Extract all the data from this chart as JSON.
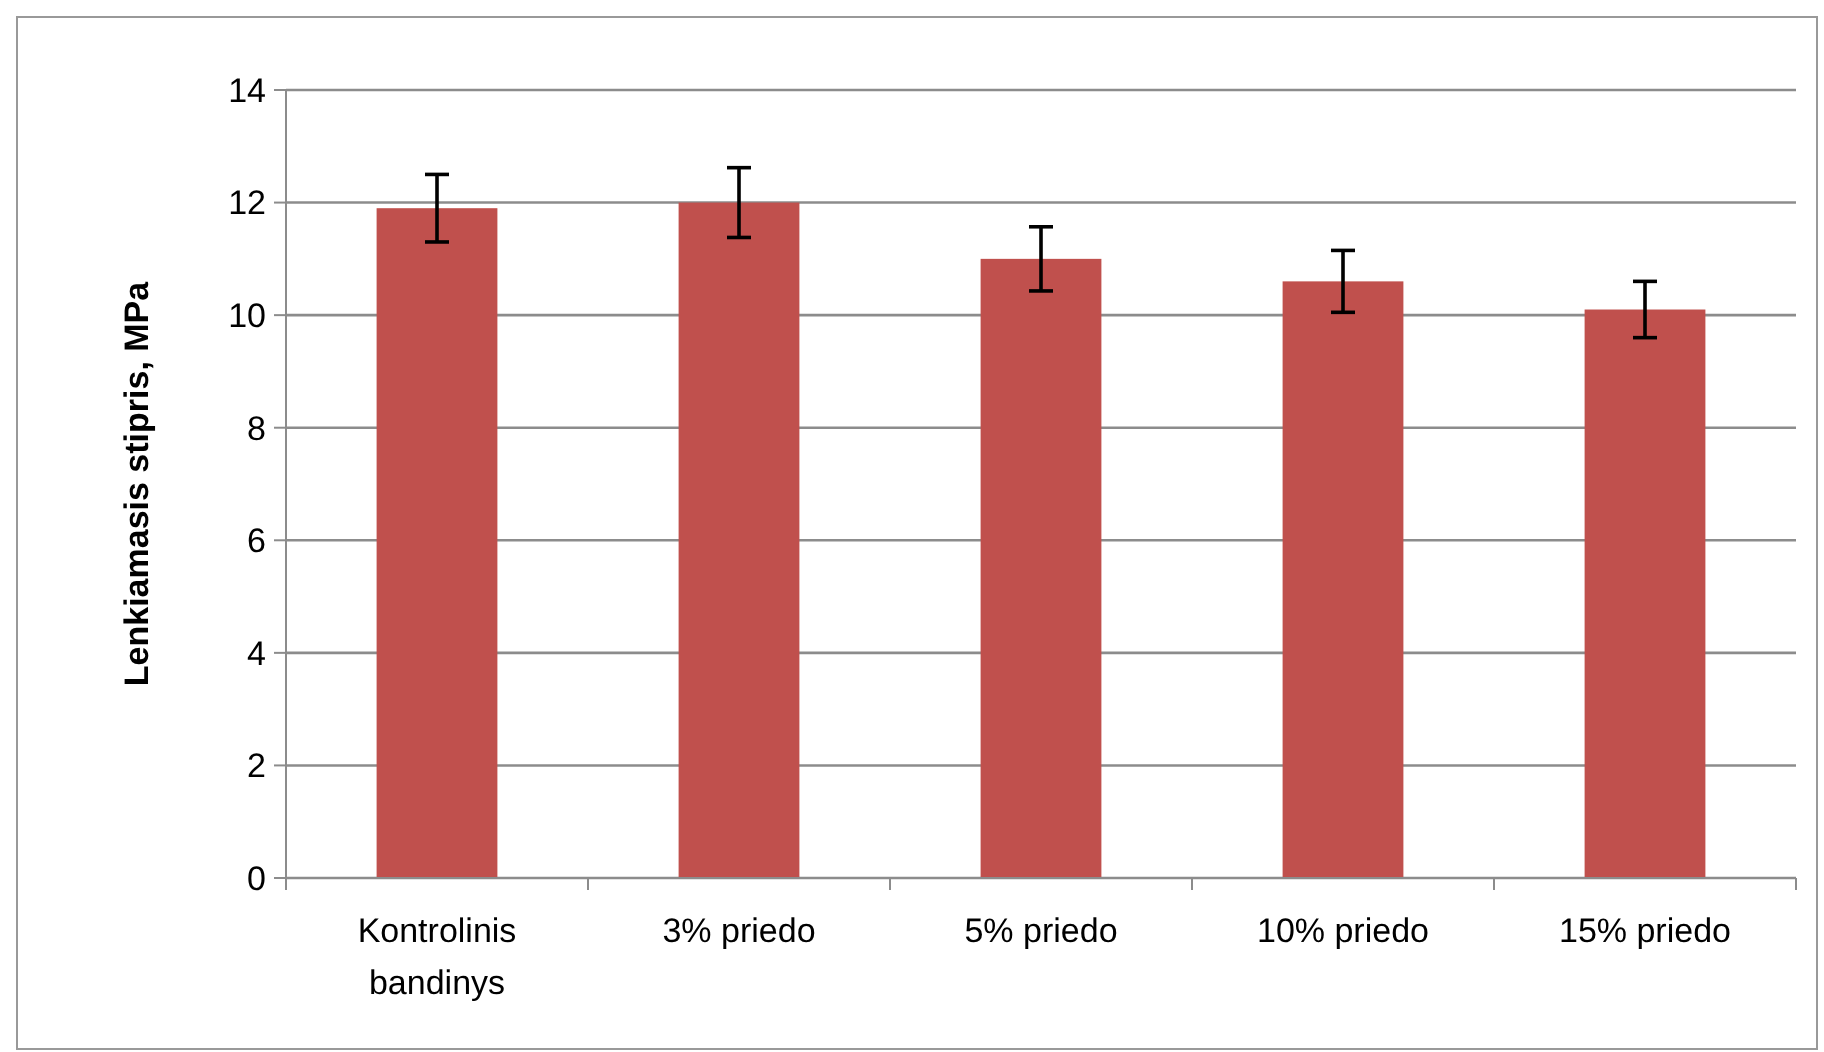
{
  "chart_data": {
    "type": "bar",
    "ylabel": "Lenkiamasis stipris, MPa",
    "categories": [
      "Kontrolinis bandinys",
      "3% priedo",
      "5% priedo",
      "10% priedo",
      "15% priedo"
    ],
    "values": [
      11.9,
      12.0,
      11.0,
      10.6,
      10.1
    ],
    "errors": [
      0.6,
      0.62,
      0.57,
      0.55,
      0.5
    ],
    "color": "#c0504d",
    "ylim": [
      0,
      14
    ],
    "yticks": [
      0,
      2,
      4,
      6,
      8,
      10,
      12,
      14
    ],
    "grid": "y"
  }
}
